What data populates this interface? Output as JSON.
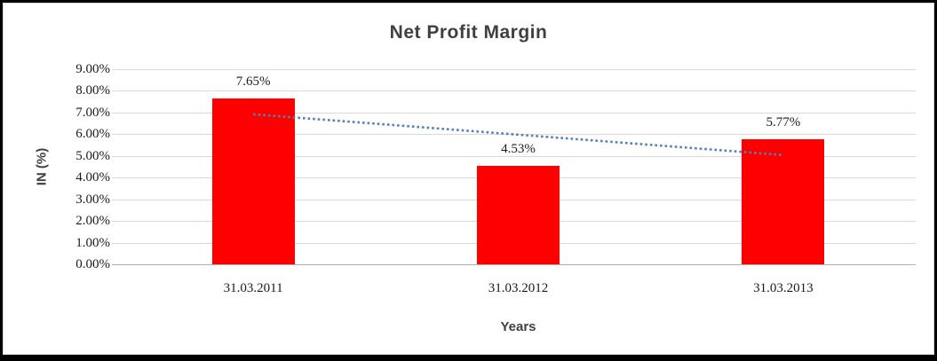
{
  "frame": {
    "outer_border_color": "#000000",
    "chart_background": "#ffffff",
    "chart_border_color": "#d9d9d9",
    "gridline_color": "#d9d9d9",
    "axis_line_color": "#b0b0b0",
    "title_color": "#404040",
    "tick_label_color": "#1a1a1a"
  },
  "chart_data": {
    "type": "bar",
    "title": "Net Profit Margin",
    "xlabel": "Years",
    "ylabel": "IN (%)",
    "categories": [
      "31.03.2011",
      "31.03.2012",
      "31.03.2013"
    ],
    "values": [
      7.65,
      4.53,
      5.77
    ],
    "data_labels": [
      "7.65%",
      "4.53%",
      "5.77%"
    ],
    "ylim": [
      0,
      9
    ],
    "ytick_step": 1,
    "ytick_labels": [
      "0.00%",
      "1.00%",
      "2.00%",
      "3.00%",
      "4.00%",
      "5.00%",
      "6.00%",
      "7.00%",
      "8.00%",
      "9.00%"
    ],
    "grid": true,
    "legend": "none",
    "bar_color": "#ff0000",
    "trendline": {
      "style": "dotted",
      "color": "#4f81bd",
      "y_start": 6.92,
      "y_end": 5.04
    }
  }
}
